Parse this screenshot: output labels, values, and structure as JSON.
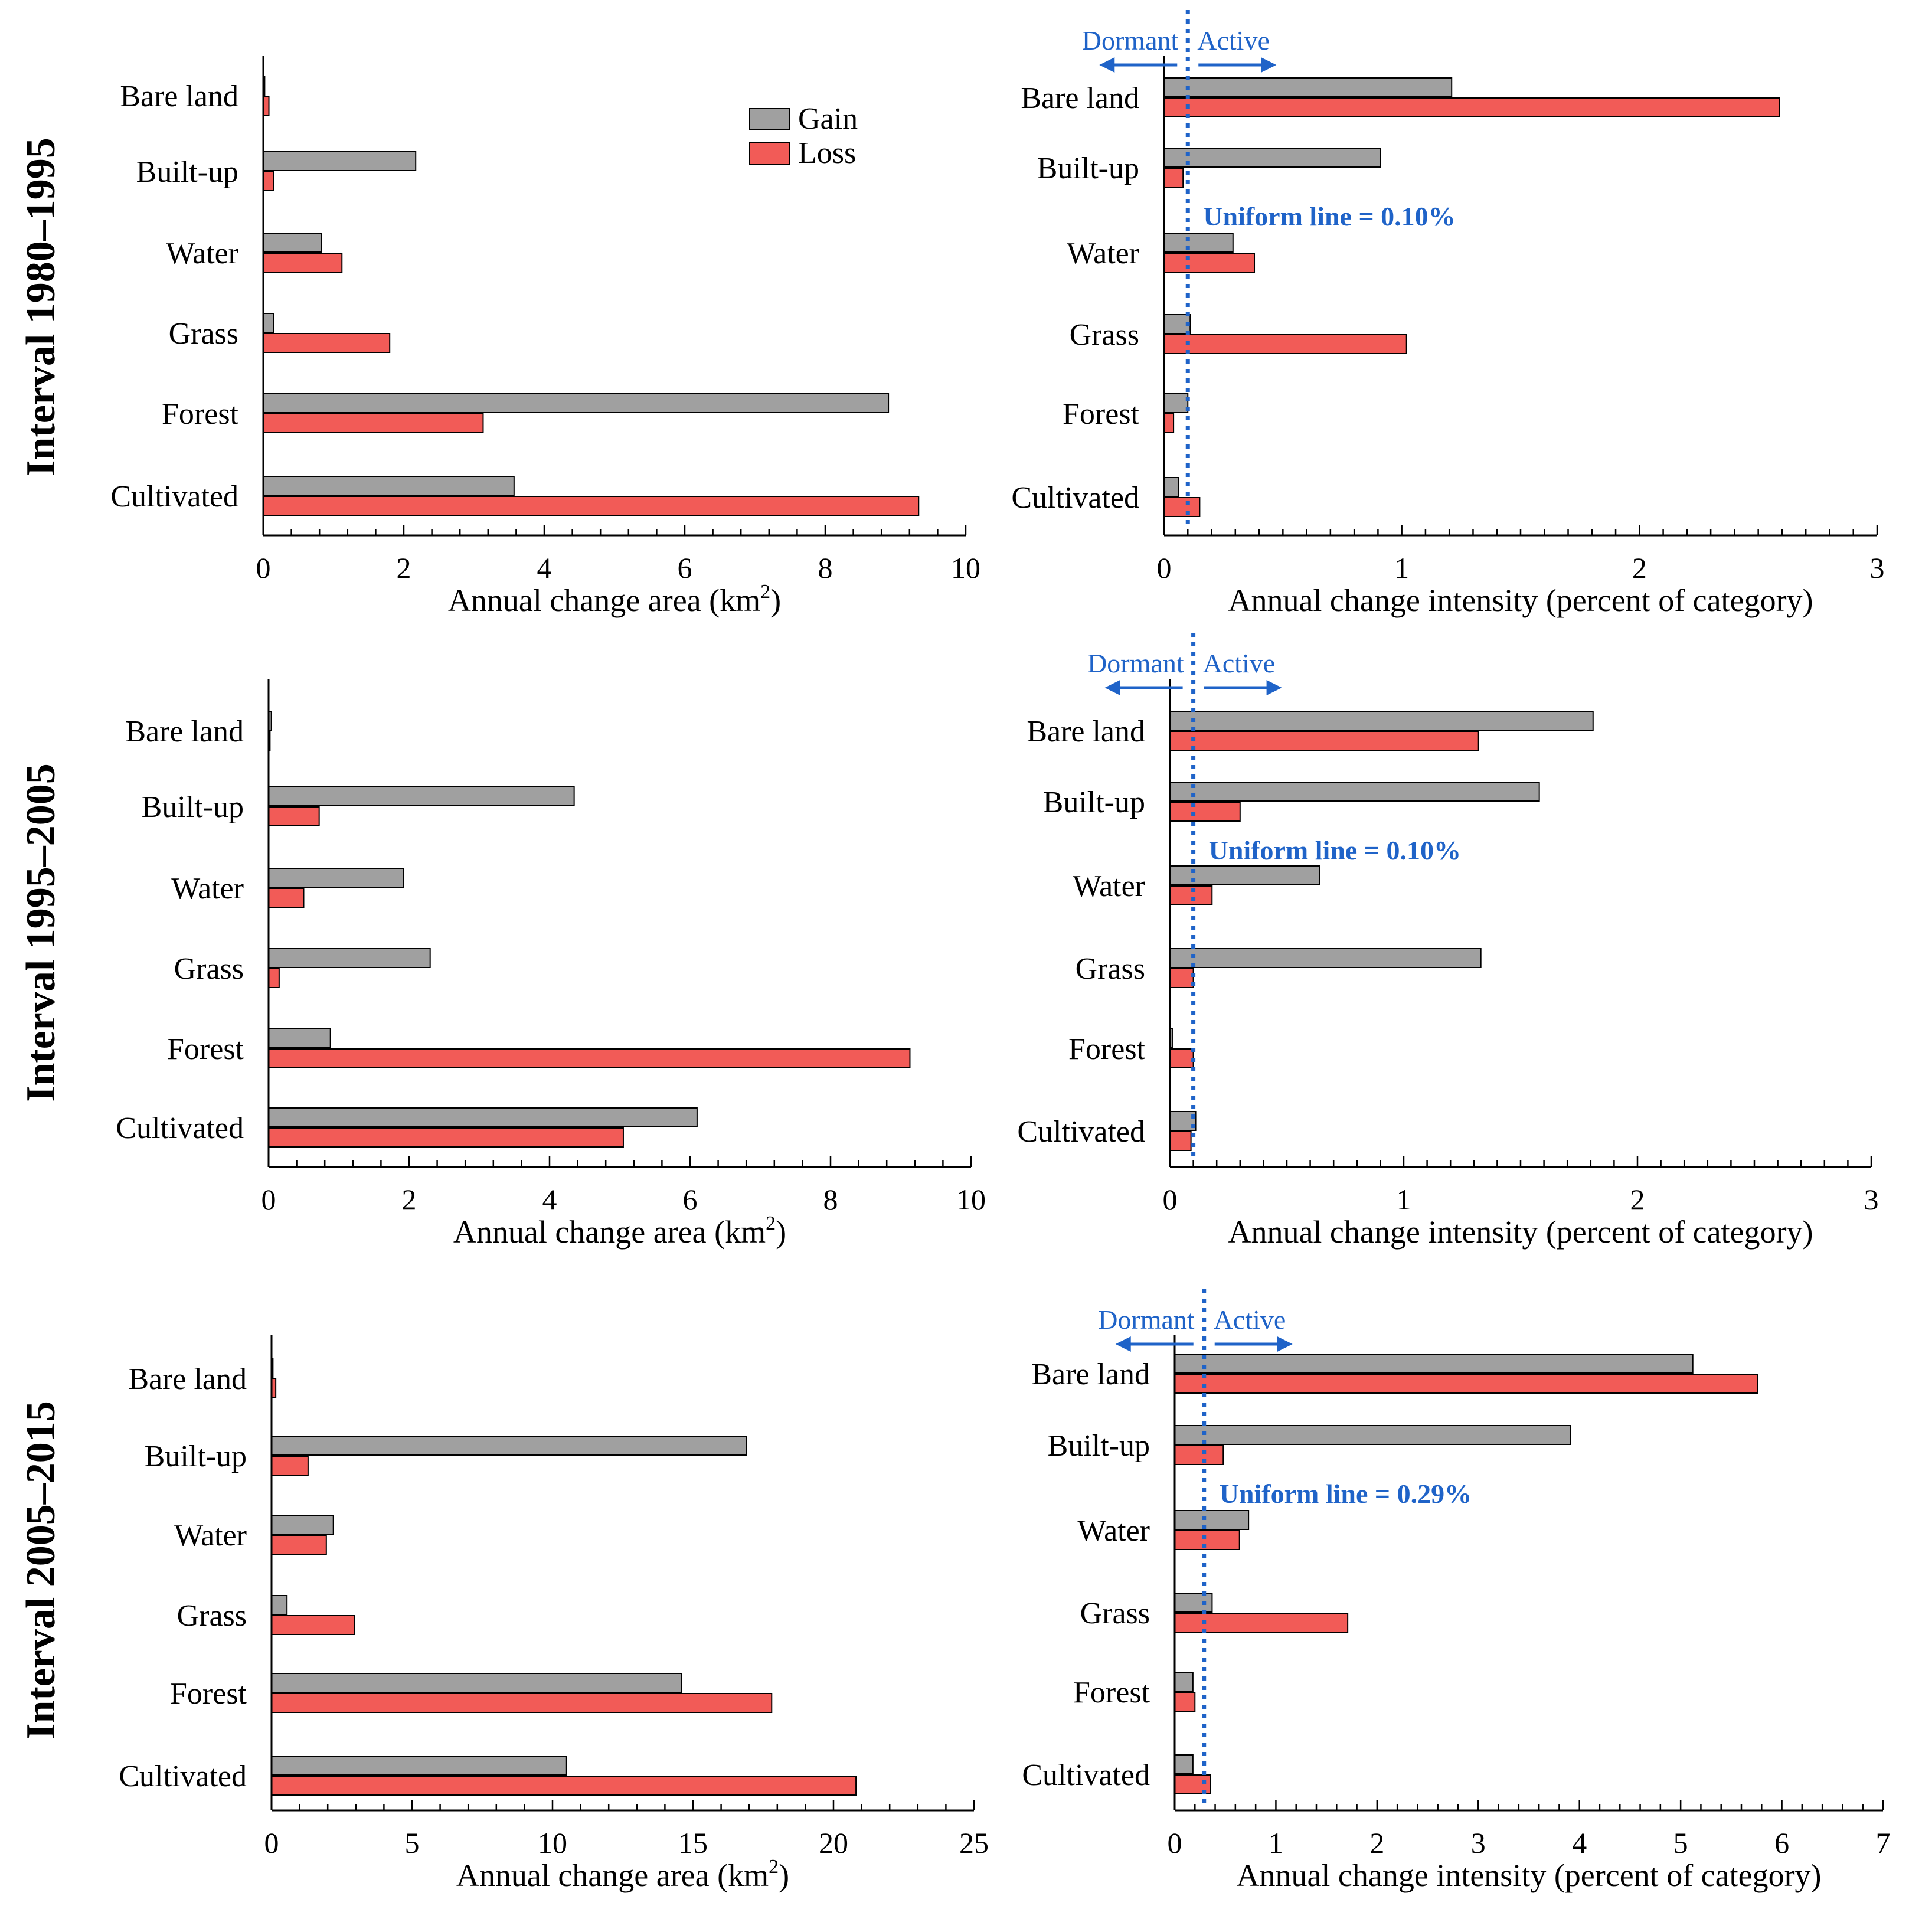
{
  "colors": {
    "gain": "#a0a0a0",
    "loss": "#f25b57",
    "uniform": "#1f63c8",
    "axis": "#000000"
  },
  "legend": {
    "gain": "Gain",
    "loss": "Loss"
  },
  "annotations": {
    "dormant": "Dormant",
    "active": "Active"
  },
  "chart_data": [
    {
      "type": "bar",
      "orientation": "horizontal",
      "interval": "1980–1995",
      "row_label": "Interval  1980–1995",
      "xlabel": "Annual change area (km",
      "xlabel_sup": "2",
      "xlabel_close": ")",
      "xlim": [
        0,
        10
      ],
      "xticks": [
        "0",
        "2",
        "4",
        "6",
        "8",
        "10"
      ],
      "categories": [
        "Bare land",
        "Built-up",
        "Water",
        "Grass",
        "Forest",
        "Cultivated"
      ],
      "series": [
        {
          "name": "Gain",
          "values": [
            0.02,
            2.17,
            0.83,
            0.15,
            8.9,
            3.57
          ]
        },
        {
          "name": "Loss",
          "values": [
            0.08,
            0.15,
            1.12,
            1.8,
            3.13,
            9.33
          ]
        }
      ]
    },
    {
      "type": "bar",
      "orientation": "horizontal",
      "interval": "1980–1995",
      "xlabel": "Annual change intensity (percent of category)",
      "xlim": [
        0,
        3
      ],
      "xticks": [
        "0",
        "1",
        "2",
        "3"
      ],
      "uniform_value": 0.1,
      "uniform_label": "Uniform line = 0.10%",
      "categories": [
        "Bare land",
        "Built-up",
        "Water",
        "Grass",
        "Forest",
        "Cultivated"
      ],
      "series": [
        {
          "name": "Gain",
          "values": [
            1.21,
            0.91,
            0.29,
            0.11,
            0.1,
            0.06
          ]
        },
        {
          "name": "Loss",
          "values": [
            2.59,
            0.08,
            0.38,
            1.02,
            0.04,
            0.15
          ]
        }
      ]
    },
    {
      "type": "bar",
      "orientation": "horizontal",
      "interval": "1995–2005",
      "row_label": "Interval  1995–2005",
      "xlabel": "Annual change area (km",
      "xlabel_sup": "2",
      "xlabel_close": ")",
      "xlim": [
        0,
        10
      ],
      "xticks": [
        "0",
        "2",
        "4",
        "6",
        "8",
        "10"
      ],
      "categories": [
        "Bare land",
        "Built-up",
        "Water",
        "Grass",
        "Forest",
        "Cultivated"
      ],
      "series": [
        {
          "name": "Gain",
          "values": [
            0.04,
            4.35,
            1.92,
            2.3,
            0.88,
            6.1
          ]
        },
        {
          "name": "Loss",
          "values": [
            0.02,
            0.72,
            0.5,
            0.15,
            9.13,
            5.05
          ]
        }
      ]
    },
    {
      "type": "bar",
      "orientation": "horizontal",
      "interval": "1995–2005",
      "xlabel": "Annual change intensity (percent of category)",
      "xlim": [
        0,
        3
      ],
      "xticks": [
        "0",
        "1",
        "2",
        "3"
      ],
      "uniform_value": 0.1,
      "uniform_label": "Uniform line = 0.10%",
      "categories": [
        "Bare land",
        "Built-up",
        "Water",
        "Grass",
        "Forest",
        "Cultivated"
      ],
      "series": [
        {
          "name": "Gain",
          "values": [
            1.81,
            1.58,
            0.64,
            1.33,
            0.01,
            0.11
          ]
        },
        {
          "name": "Loss",
          "values": [
            1.32,
            0.3,
            0.18,
            0.1,
            0.1,
            0.09
          ]
        }
      ]
    },
    {
      "type": "bar",
      "orientation": "horizontal",
      "interval": "2005–2015",
      "row_label": "Interval  2005–2015",
      "xlabel": "Annual change area (km",
      "xlabel_sup": "2",
      "xlabel_close": ")",
      "xlim": [
        0,
        25
      ],
      "xticks": [
        "0",
        "5",
        "10",
        "15",
        "20",
        "25"
      ],
      "categories": [
        "Bare land",
        "Built-up",
        "Water",
        "Grass",
        "Forest",
        "Cultivated"
      ],
      "series": [
        {
          "name": "Gain",
          "values": [
            0.05,
            16.9,
            2.2,
            0.55,
            14.6,
            10.5
          ]
        },
        {
          "name": "Loss",
          "values": [
            0.15,
            1.3,
            1.95,
            2.95,
            17.8,
            20.8
          ]
        }
      ]
    },
    {
      "type": "bar",
      "orientation": "horizontal",
      "interval": "2005–2015",
      "xlabel": "Annual change intensity (percent of category)",
      "xlim": [
        0,
        7
      ],
      "xticks": [
        "0",
        "1",
        "2",
        "3",
        "4",
        "5",
        "6",
        "7"
      ],
      "uniform_value": 0.29,
      "uniform_label": "Uniform line = 0.29%",
      "categories": [
        "Bare land",
        "Built-up",
        "Water",
        "Grass",
        "Forest",
        "Cultivated"
      ],
      "series": [
        {
          "name": "Gain",
          "values": [
            5.12,
            3.91,
            0.73,
            0.37,
            0.18,
            0.18
          ]
        },
        {
          "name": "Loss",
          "values": [
            5.76,
            0.48,
            0.64,
            1.71,
            0.2,
            0.35
          ]
        }
      ]
    }
  ]
}
